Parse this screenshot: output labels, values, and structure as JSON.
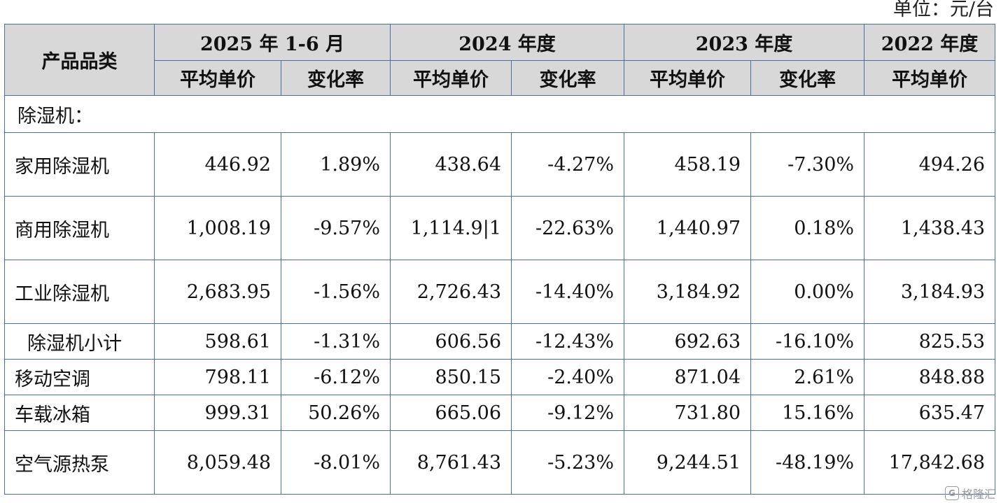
{
  "unit_label": "单位：元/台",
  "header": {
    "category_label": "产品品类",
    "periods": [
      "2025 年 1-6 月",
      "2024 年度",
      "2023 年度",
      "2022 年度"
    ],
    "avg_price": "平均单价",
    "change_rate": "变化率"
  },
  "section_label": "除湿机：",
  "rows": [
    {
      "name": "家用除湿机",
      "v": [
        "446.92",
        "1.89%",
        "438.64",
        "-4.27%",
        "458.19",
        "-7.30%",
        "494.26"
      ]
    },
    {
      "name": "商用除湿机",
      "v": [
        "1,008.19",
        "-9.57%",
        "1,114.9|1",
        "-22.63%",
        "1,440.97",
        "0.18%",
        "1,438.43"
      ]
    },
    {
      "name": "工业除湿机",
      "v": [
        "2,683.95",
        "-1.56%",
        "2,726.43",
        "-14.40%",
        "3,184.92",
        "0.00%",
        "3,184.93"
      ]
    },
    {
      "name": "除湿机小计",
      "v": [
        "598.61",
        "-1.31%",
        "606.56",
        "-12.43%",
        "692.63",
        "-16.10%",
        "825.53"
      ]
    },
    {
      "name": "移动空调",
      "v": [
        "798.11",
        "-6.12%",
        "850.15",
        "-2.40%",
        "871.04",
        "2.61%",
        "848.88"
      ]
    },
    {
      "name": "车载冰箱",
      "v": [
        "999.31",
        "50.26%",
        "665.06",
        "-9.12%",
        "731.80",
        "15.16%",
        "635.47"
      ]
    },
    {
      "name": "空气源热泵",
      "v": [
        "8,059.48",
        "-8.01%",
        "8,761.43",
        "-5.23%",
        "9,244.51",
        "-48.19%",
        "17,842.68"
      ]
    }
  ],
  "watermark": {
    "badge": "G",
    "text": "格隆汇"
  }
}
